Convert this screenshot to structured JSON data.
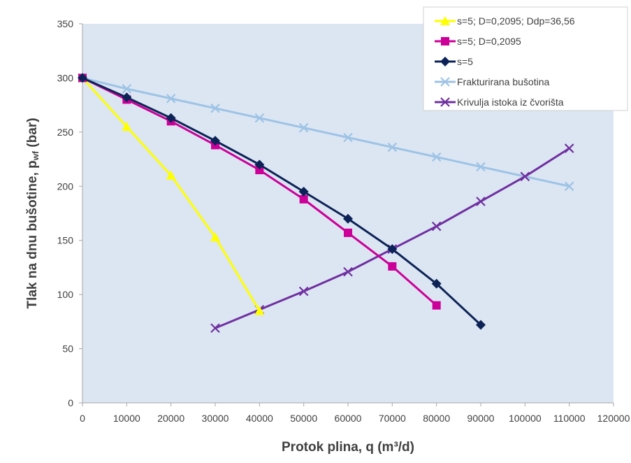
{
  "chart_data": {
    "type": "line",
    "xlabel": "Protok plina, q (m³/d)",
    "ylabel_main": "Tlak na dnu bušotine, p",
    "ylabel_sub": "wf",
    "ylabel_unit": " (bar)",
    "xlim": [
      0,
      120000
    ],
    "ylim": [
      0,
      350
    ],
    "x_ticks": [
      0,
      10000,
      20000,
      30000,
      40000,
      50000,
      60000,
      70000,
      80000,
      90000,
      100000,
      110000,
      120000
    ],
    "y_ticks": [
      0,
      50,
      100,
      150,
      200,
      250,
      300,
      350
    ],
    "grid": false,
    "legend_position": "top-right",
    "colors": {
      "plot_bg": "#dce6f2",
      "axis": "#a6a6a6"
    },
    "series": [
      {
        "name": "s=5; D=0,2095; Ddp=36,56",
        "color": "#ffff00",
        "marker": "triangle",
        "x": [
          0,
          10000,
          20000,
          30000,
          40000
        ],
        "y": [
          300,
          255,
          210,
          153,
          85
        ]
      },
      {
        "name": "s=5; D=0,2095",
        "color": "#cc0099",
        "marker": "square",
        "x": [
          0,
          10000,
          20000,
          30000,
          40000,
          50000,
          60000,
          70000,
          80000
        ],
        "y": [
          300,
          280,
          260,
          238,
          215,
          188,
          157,
          126,
          90
        ]
      },
      {
        "name": "s=5",
        "color": "#0d2357",
        "marker": "diamond",
        "x": [
          0,
          10000,
          20000,
          30000,
          40000,
          50000,
          60000,
          70000,
          80000,
          90000
        ],
        "y": [
          300,
          282,
          263,
          242,
          220,
          195,
          170,
          142,
          110,
          72
        ]
      },
      {
        "name": "Frakturirana bušotina",
        "color": "#9dc3e6",
        "marker": "x",
        "x": [
          0,
          10000,
          20000,
          30000,
          40000,
          50000,
          60000,
          70000,
          80000,
          90000,
          100000,
          110000
        ],
        "y": [
          300,
          290,
          281,
          272,
          263,
          254,
          245,
          236,
          227,
          218,
          209,
          200
        ]
      },
      {
        "name": "Krivulja istoka iz čvorišta",
        "color": "#7030a0",
        "marker": "x",
        "x": [
          30000,
          40000,
          50000,
          60000,
          70000,
          80000,
          90000,
          100000,
          110000
        ],
        "y": [
          69,
          86,
          103,
          121,
          142,
          163,
          186,
          209,
          235
        ]
      }
    ]
  }
}
